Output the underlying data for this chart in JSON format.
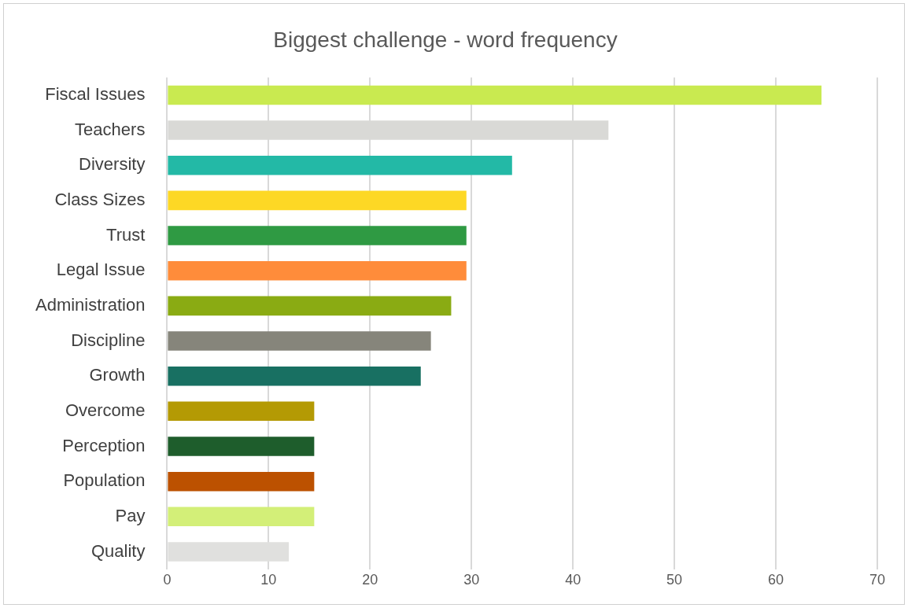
{
  "chart_data": {
    "type": "bar",
    "orientation": "horizontal",
    "title": "Biggest challenge - word frequency",
    "categories": [
      "Fiscal Issues",
      "Teachers",
      "Diversity",
      "Class Sizes",
      "Trust",
      "Legal Issue",
      "Administration",
      "Discipline",
      "Growth",
      "Overcome",
      "Perception",
      "Population",
      "Pay",
      "Quality"
    ],
    "values": [
      64.5,
      43.5,
      34,
      29.5,
      29.5,
      29.5,
      28,
      26,
      25,
      14.5,
      14.5,
      14.5,
      14.5,
      12
    ],
    "colors": [
      "#c9ea50",
      "#d9d9d6",
      "#23b9a6",
      "#fdd825",
      "#2f9a43",
      "#ff8c3a",
      "#8aab13",
      "#86857b",
      "#187062",
      "#b49a04",
      "#1e5d2c",
      "#bc5100",
      "#d3ef78",
      "#e0e0de"
    ],
    "xlim": [
      0,
      70
    ],
    "xticks": [
      0,
      10,
      20,
      30,
      40,
      50,
      60,
      70
    ],
    "grid": "x"
  }
}
